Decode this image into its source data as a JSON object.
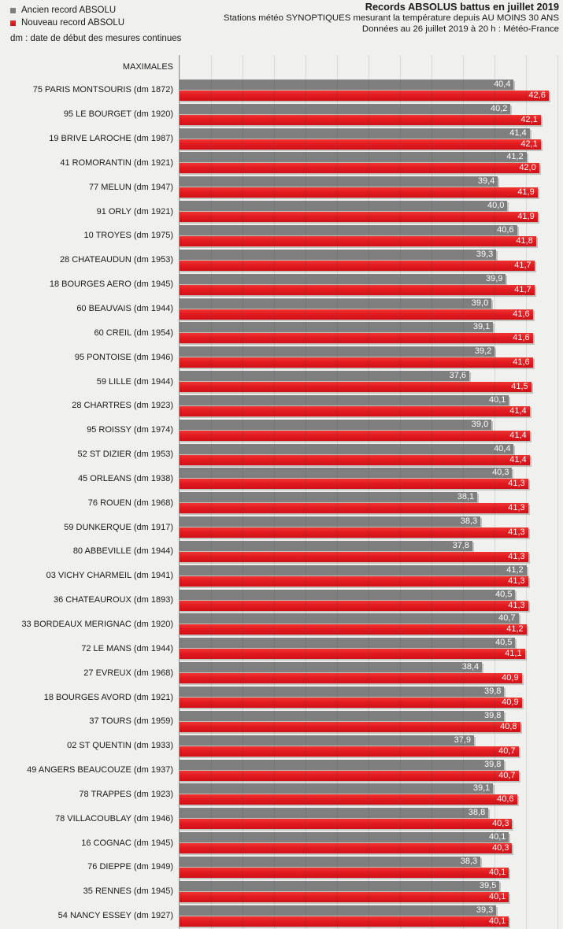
{
  "header": {
    "title": "Records ABSOLUS battus en juillet 2019",
    "subtitle1": "Stations météo SYNOPTIQUES mesurant la température depuis AU MOINS 30 ANS",
    "subtitle2": "Données au 26 juillet 2019 à 20 h : Météo-France",
    "legend_old": "Ancien record ABSOLU",
    "legend_new": "Nouveau record ABSOLU",
    "legend_note": "dm : date de début des mesures continues"
  },
  "colors": {
    "old_record": "#7f7f7f",
    "new_record": "#e31b21",
    "background": "#f0f0ee"
  },
  "chart_data": {
    "type": "bar",
    "orientation": "horizontal",
    "title": "Records ABSOLUS battus en juillet 2019",
    "group_label": "MAXIMALES",
    "unit": "°C",
    "value_format": "comma-decimal",
    "legend_position": "top-left",
    "grid": "vertical gridlines, ~2 °C apart",
    "axis": {
      "min": 19.3,
      "max": 43.5
    },
    "series": [
      {
        "key": "old",
        "name": "Ancien record ABSOLU",
        "color": "#7f7f7f"
      },
      {
        "key": "new",
        "name": "Nouveau record ABSOLU",
        "color": "#e31b21"
      }
    ],
    "stations": [
      {
        "label": "75 PARIS MONTSOURIS (dm 1872)",
        "old": 40.4,
        "new": 42.6
      },
      {
        "label": "95 LE BOURGET (dm 1920)",
        "old": 40.2,
        "new": 42.1
      },
      {
        "label": "19 BRIVE LAROCHE (dm 1987)",
        "old": 41.4,
        "new": 42.1
      },
      {
        "label": "41 ROMORANTIN (dm 1921)",
        "old": 41.2,
        "new": 42.0
      },
      {
        "label": "77 MELUN (dm 1947)",
        "old": 39.4,
        "new": 41.9
      },
      {
        "label": "91 ORLY (dm 1921)",
        "old": 40.0,
        "new": 41.9
      },
      {
        "label": "10 TROYES (dm 1975)",
        "old": 40.6,
        "new": 41.8
      },
      {
        "label": "28 CHATEAUDUN (dm 1953)",
        "old": 39.3,
        "new": 41.7
      },
      {
        "label": "18 BOURGES AERO (dm 1945)",
        "old": 39.9,
        "new": 41.7
      },
      {
        "label": "60 BEAUVAIS (dm 1944)",
        "old": 39.0,
        "new": 41.6
      },
      {
        "label": "60 CREIL (dm 1954)",
        "old": 39.1,
        "new": 41.6
      },
      {
        "label": "95 PONTOISE (dm 1946)",
        "old": 39.2,
        "new": 41.6
      },
      {
        "label": "59 LILLE (dm 1944)",
        "old": 37.6,
        "new": 41.5
      },
      {
        "label": "28 CHARTRES (dm 1923)",
        "old": 40.1,
        "new": 41.4
      },
      {
        "label": "95 ROISSY (dm 1974)",
        "old": 39.0,
        "new": 41.4
      },
      {
        "label": "52 ST DIZIER (dm 1953)",
        "old": 40.4,
        "new": 41.4
      },
      {
        "label": "45 ORLEANS (dm 1938)",
        "old": 40.3,
        "new": 41.3
      },
      {
        "label": "76 ROUEN (dm 1968)",
        "old": 38.1,
        "new": 41.3
      },
      {
        "label": "59 DUNKERQUE (dm 1917)",
        "old": 38.3,
        "new": 41.3
      },
      {
        "label": "80 ABBEVILLE (dm 1944)",
        "old": 37.8,
        "new": 41.3
      },
      {
        "label": "03 VICHY CHARMEIL (dm 1941)",
        "old": 41.2,
        "new": 41.3
      },
      {
        "label": "36 CHATEAUROUX (dm 1893)",
        "old": 40.5,
        "new": 41.3
      },
      {
        "label": "33 BORDEAUX MERIGNAC (dm 1920)",
        "old": 40.7,
        "new": 41.2
      },
      {
        "label": "72 LE MANS (dm 1944)",
        "old": 40.5,
        "new": 41.1
      },
      {
        "label": "27 EVREUX (dm 1968)",
        "old": 38.4,
        "new": 40.9
      },
      {
        "label": "18 BOURGES AVORD (dm 1921)",
        "old": 39.8,
        "new": 40.9
      },
      {
        "label": "37 TOURS (dm 1959)",
        "old": 39.8,
        "new": 40.8
      },
      {
        "label": "02 ST QUENTIN (dm 1933)",
        "old": 37.9,
        "new": 40.7
      },
      {
        "label": "49 ANGERS BEAUCOUZE (dm 1937)",
        "old": 39.8,
        "new": 40.7
      },
      {
        "label": "78 TRAPPES (dm 1923)",
        "old": 39.1,
        "new": 40.6
      },
      {
        "label": "78 VILLACOUBLAY (dm 1946)",
        "old": 38.8,
        "new": 40.3
      },
      {
        "label": "16 COGNAC (dm 1945)",
        "old": 40.1,
        "new": 40.3
      },
      {
        "label": "76 DIEPPE (dm 1949)",
        "old": 38.3,
        "new": 40.1
      },
      {
        "label": "35 RENNES (dm 1945)",
        "old": 39.5,
        "new": 40.1
      },
      {
        "label": "54 NANCY ESSEY (dm 1927)",
        "old": 39.3,
        "new": 40.1
      }
    ]
  }
}
